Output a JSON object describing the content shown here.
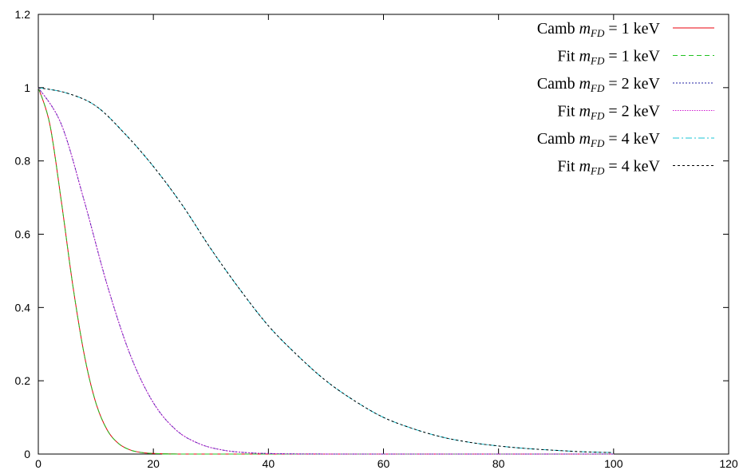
{
  "chart_data": {
    "type": "line",
    "title": "",
    "xlabel": "",
    "ylabel": "",
    "xlim": [
      0,
      120
    ],
    "ylim": [
      0,
      1.2
    ],
    "xticks": [
      0,
      20,
      40,
      60,
      80,
      100,
      120
    ],
    "yticks": [
      0,
      0.2,
      0.4,
      0.6,
      0.8,
      1,
      1.2
    ],
    "xtick_labels": [
      "0",
      "20",
      "40",
      "60",
      "80",
      "100",
      "120"
    ],
    "ytick_labels": [
      "0",
      "0.2",
      "0.4",
      "0.6",
      "0.8",
      "1",
      "1.2"
    ],
    "grid": false,
    "legend_position": "top-right",
    "series": [
      {
        "name": "Camb mFD = 1 keV",
        "legend": {
          "prefix": "Camb ",
          "symbol": "m",
          "subscript": "FD",
          "value": " = 1 keV"
        },
        "color": "#e8000b",
        "dash": "",
        "x": [
          0,
          2,
          4,
          6,
          8,
          10,
          12,
          14,
          16,
          18,
          20,
          24,
          28,
          100
        ],
        "y": [
          1.0,
          0.9,
          0.69,
          0.46,
          0.27,
          0.14,
          0.065,
          0.028,
          0.011,
          0.004,
          0.0015,
          0.0002,
          0.0,
          0.0
        ]
      },
      {
        "name": "Fit mFD = 1 keV",
        "legend": {
          "prefix": "Fit ",
          "symbol": "m",
          "subscript": "FD",
          "value": " = 1 keV"
        },
        "color": "#21c221",
        "dash": "6 4",
        "x": [
          0,
          2,
          4,
          6,
          8,
          10,
          12,
          14,
          16,
          18,
          20,
          24,
          28,
          100
        ],
        "y": [
          1.0,
          0.9,
          0.69,
          0.46,
          0.27,
          0.14,
          0.065,
          0.028,
          0.011,
          0.004,
          0.0015,
          0.0002,
          0.0,
          0.0
        ]
      },
      {
        "name": "Camb mFD = 2 keV",
        "legend": {
          "prefix": "Camb ",
          "symbol": "m",
          "subscript": "FD",
          "value": " = 2 keV"
        },
        "color": "#1f1fa3",
        "dash": "2 2",
        "x": [
          0,
          4,
          8,
          12,
          16,
          20,
          24,
          28,
          32,
          36,
          40,
          45,
          50,
          55,
          100
        ],
        "y": [
          1.0,
          0.9,
          0.69,
          0.46,
          0.27,
          0.14,
          0.065,
          0.028,
          0.011,
          0.004,
          0.0015,
          0.0004,
          0.0001,
          0.0,
          0.0
        ]
      },
      {
        "name": "Fit mFD = 2 keV",
        "legend": {
          "prefix": "Fit ",
          "symbol": "m",
          "subscript": "FD",
          "value": " = 2 keV"
        },
        "color": "#d01ad0",
        "dash": "1.5 1.5",
        "x": [
          0,
          4,
          8,
          12,
          16,
          20,
          24,
          28,
          32,
          36,
          40,
          45,
          50,
          55,
          100
        ],
        "y": [
          1.0,
          0.9,
          0.69,
          0.46,
          0.27,
          0.14,
          0.065,
          0.028,
          0.011,
          0.004,
          0.0015,
          0.0004,
          0.0001,
          0.0,
          0.0
        ]
      },
      {
        "name": "Camb mFD = 4 keV",
        "legend": {
          "prefix": "Camb ",
          "symbol": "m",
          "subscript": "FD",
          "value": " = 4 keV"
        },
        "color": "#19c6d6",
        "dash": "8 3 2 3",
        "x": [
          0,
          5,
          10,
          15,
          20,
          25,
          30,
          35,
          40,
          45,
          50,
          55,
          60,
          65,
          70,
          75,
          80,
          85,
          90,
          95,
          100
        ],
        "y": [
          1.0,
          0.985,
          0.95,
          0.875,
          0.785,
          0.68,
          0.56,
          0.45,
          0.35,
          0.27,
          0.2,
          0.145,
          0.1,
          0.07,
          0.047,
          0.032,
          0.022,
          0.015,
          0.01,
          0.006,
          0.004
        ]
      },
      {
        "name": "Fit mFD = 4 keV",
        "legend": {
          "prefix": "Fit ",
          "symbol": "m",
          "subscript": "FD",
          "value": " = 4 keV"
        },
        "color": "#000000",
        "dash": "3 3",
        "x": [
          0,
          5,
          10,
          15,
          20,
          25,
          30,
          35,
          40,
          45,
          50,
          55,
          60,
          65,
          70,
          75,
          80,
          85,
          90,
          95,
          100
        ],
        "y": [
          1.0,
          0.985,
          0.95,
          0.875,
          0.785,
          0.68,
          0.56,
          0.45,
          0.35,
          0.27,
          0.2,
          0.145,
          0.1,
          0.07,
          0.047,
          0.032,
          0.022,
          0.015,
          0.01,
          0.006,
          0.004
        ]
      }
    ]
  }
}
